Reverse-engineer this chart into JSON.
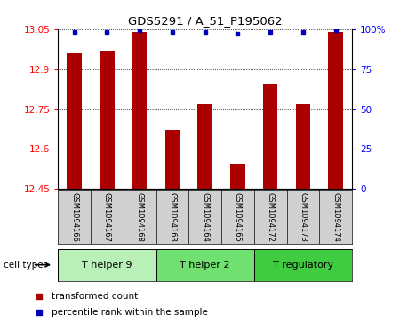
{
  "title": "GDS5291 / A_51_P195062",
  "samples": [
    "GSM1094166",
    "GSM1094167",
    "GSM1094168",
    "GSM1094163",
    "GSM1094164",
    "GSM1094165",
    "GSM1094172",
    "GSM1094173",
    "GSM1094174"
  ],
  "transformed_counts": [
    12.96,
    12.97,
    13.04,
    12.67,
    12.77,
    12.545,
    12.845,
    12.77,
    13.04
  ],
  "percentile_ranks": [
    98,
    98,
    99,
    98,
    98,
    97,
    98,
    98,
    99
  ],
  "ylim_left": [
    12.45,
    13.05
  ],
  "ylim_right": [
    0,
    100
  ],
  "yticks_left": [
    12.45,
    12.6,
    12.75,
    12.9,
    13.05
  ],
  "yticks_right": [
    0,
    25,
    50,
    75,
    100
  ],
  "ytick_labels_left": [
    "12.45",
    "12.6",
    "12.75",
    "12.9",
    "13.05"
  ],
  "ytick_labels_right": [
    "0",
    "25",
    "50",
    "75",
    "100%"
  ],
  "cell_types": [
    {
      "label": "T helper 9",
      "start": 0,
      "end": 3,
      "color": "#b8f0b8"
    },
    {
      "label": "T helper 2",
      "start": 3,
      "end": 6,
      "color": "#70e070"
    },
    {
      "label": "T regulatory",
      "start": 6,
      "end": 9,
      "color": "#40cc40"
    }
  ],
  "bar_color": "#aa0000",
  "dot_color": "#0000bb",
  "bar_width": 0.45,
  "background_color": "#ffffff",
  "sample_bg_color": "#d0d0d0",
  "legend_bar_label": "transformed count",
  "legend_dot_label": "percentile rank within the sample",
  "cell_type_label": "cell type"
}
